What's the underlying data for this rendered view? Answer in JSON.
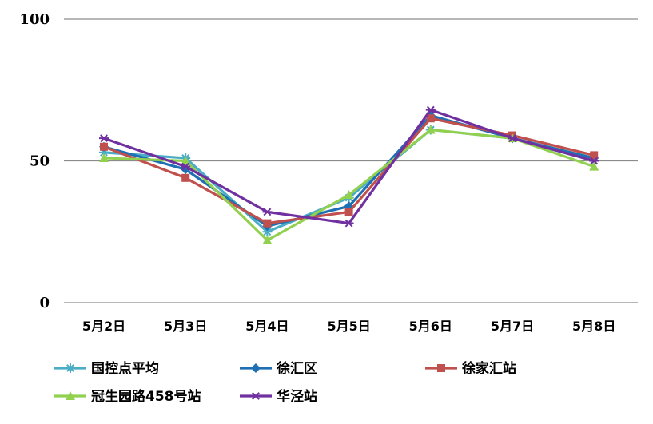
{
  "chart_data": {
    "type": "line",
    "categories": [
      "5月2日",
      "5月3日",
      "5月4日",
      "5月5日",
      "5月6日",
      "5月7日",
      "5月8日"
    ],
    "series": [
      {
        "name": "国控点平均",
        "values": [
          53,
          51,
          25,
          37,
          61,
          58,
          50
        ],
        "color": "#4BACC6",
        "marker": "star"
      },
      {
        "name": "徐汇区",
        "values": [
          55,
          47,
          27,
          34,
          66,
          58,
          51
        ],
        "color": "#1F6FB5",
        "marker": "diamond"
      },
      {
        "name": "徐家汇站",
        "values": [
          55,
          44,
          28,
          32,
          65,
          59,
          52
        ],
        "color": "#C0504D",
        "marker": "square"
      },
      {
        "name": "冠生园路458号站",
        "values": [
          51,
          50,
          22,
          38,
          61,
          58,
          48
        ],
        "color": "#92D050",
        "marker": "triangle"
      },
      {
        "name": "华泾站",
        "values": [
          58,
          48,
          32,
          28,
          68,
          58,
          50
        ],
        "color": "#7030A0",
        "marker": "asterisk"
      }
    ],
    "yticks": [
      0,
      50,
      100
    ],
    "ylim": [
      0,
      100
    ],
    "grid": true,
    "legend_position": "bottom"
  }
}
